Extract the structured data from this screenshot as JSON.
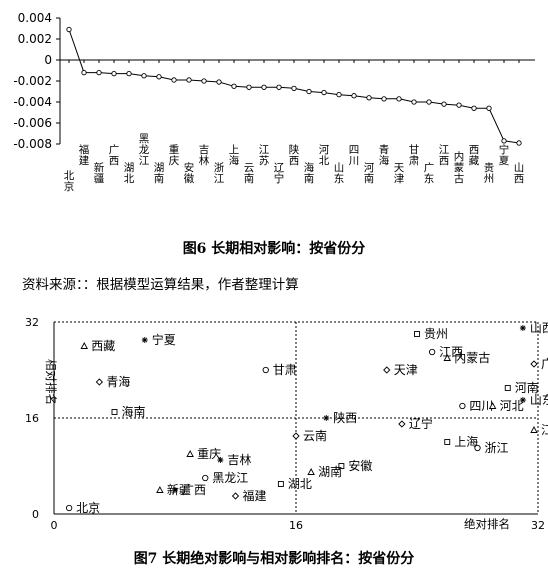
{
  "figure1": {
    "caption": "图6   长期相对影响：按省份分",
    "chart_data": {
      "type": "line",
      "categories": [
        "北京",
        "福建",
        "新疆",
        "广西",
        "湖北",
        "黑龙江",
        "湖南",
        "重庆",
        "安徽",
        "吉林",
        "浙江",
        "上海",
        "云南",
        "江苏",
        "辽宁",
        "陕西",
        "海南",
        "河北",
        "山东",
        "四川",
        "河南",
        "青海",
        "天津",
        "甘肃",
        "广东",
        "江西",
        "内蒙古",
        "西藏",
        "贵州",
        "宁夏",
        "山西"
      ],
      "values": [
        0.0029,
        -0.0012,
        -0.0012,
        -0.0013,
        -0.0013,
        -0.0015,
        -0.0016,
        -0.0019,
        -0.0019,
        -0.002,
        -0.0021,
        -0.0025,
        -0.0026,
        -0.0026,
        -0.0026,
        -0.0027,
        -0.003,
        -0.0031,
        -0.0033,
        -0.0034,
        -0.0036,
        -0.0037,
        -0.0037,
        -0.004,
        -0.004,
        -0.0042,
        -0.0043,
        -0.0046,
        -0.0046,
        -0.0077,
        -0.0079
      ],
      "yticks": [
        "0.004",
        "0.002",
        "0",
        "-0.002",
        "-0.004",
        "-0.006",
        "-0.008"
      ],
      "ylim": [
        -0.008,
        0.004
      ],
      "grid": false
    }
  },
  "source_note": "资料来源：：根据模型运算结果，作者整理计算",
  "figure2": {
    "caption": "图7   长期绝对影响与相对影响排名：按省份分",
    "chart_data": {
      "type": "scatter",
      "xlabel": "绝对排名",
      "ylabel": "相对排名",
      "xticks": [
        "0",
        "16",
        "32"
      ],
      "yticks": [
        "0",
        "16",
        "32"
      ],
      "xlim": [
        0,
        32
      ],
      "ylim": [
        0,
        32
      ],
      "points": [
        {
          "name": "西藏",
          "x": 2,
          "y": 28
        },
        {
          "name": "宁夏",
          "x": 6,
          "y": 29
        },
        {
          "name": "青海",
          "x": 3,
          "y": 22
        },
        {
          "name": "海南",
          "x": 4,
          "y": 17
        },
        {
          "name": "甘肃",
          "x": 14,
          "y": 24
        },
        {
          "name": "重庆",
          "x": 9,
          "y": 10
        },
        {
          "name": "吉林",
          "x": 11,
          "y": 9
        },
        {
          "name": "云南",
          "x": 16,
          "y": 13
        },
        {
          "name": "安徽",
          "x": 19,
          "y": 8
        },
        {
          "name": "黑龙江",
          "x": 10,
          "y": 6
        },
        {
          "name": "新疆",
          "x": 7,
          "y": 4
        },
        {
          "name": "广西",
          "x": 8,
          "y": 4
        },
        {
          "name": "福建",
          "x": 12,
          "y": 3
        },
        {
          "name": "湖北",
          "x": 15,
          "y": 5
        },
        {
          "name": "北京",
          "x": 1,
          "y": 1
        },
        {
          "name": "湖南",
          "x": 17,
          "y": 7
        },
        {
          "name": "陕西",
          "x": 18,
          "y": 16
        },
        {
          "name": "天津",
          "x": 22,
          "y": 24
        },
        {
          "name": "贵州",
          "x": 24,
          "y": 30
        },
        {
          "name": "江西",
          "x": 25,
          "y": 27
        },
        {
          "name": "内蒙古",
          "x": 26,
          "y": 26
        },
        {
          "name": "山西",
          "x": 31,
          "y": 31
        },
        {
          "name": "广东",
          "x": 32,
          "y": 25
        },
        {
          "name": "河南",
          "x": 30,
          "y": 21
        },
        {
          "name": "四川",
          "x": 27,
          "y": 18
        },
        {
          "name": "河北",
          "x": 29,
          "y": 18
        },
        {
          "name": "山东",
          "x": 31,
          "y": 19
        },
        {
          "name": "辽宁",
          "x": 23,
          "y": 15
        },
        {
          "name": "上海",
          "x": 26,
          "y": 12
        },
        {
          "name": "浙江",
          "x": 28,
          "y": 11
        },
        {
          "name": "江苏",
          "x": 33,
          "y": 14
        }
      ]
    }
  }
}
